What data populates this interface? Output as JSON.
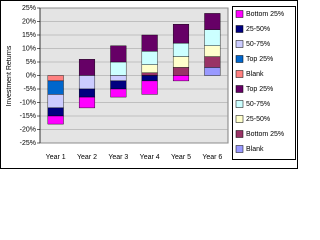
{
  "chart_data": {
    "type": "bar",
    "stacked": true,
    "y_label": "Investment Returns",
    "categories": [
      "Year 1",
      "Year 2",
      "Year 3",
      "Year 4",
      "Year 5",
      "Year 6"
    ],
    "series": [
      {
        "name": "Bottom 25%",
        "color": "#ff00ff",
        "values": [
          -3,
          -4,
          -3,
          -5,
          -2,
          0
        ]
      },
      {
        "name": "25-50%",
        "color": "#000080",
        "values": [
          -3,
          -3,
          -3,
          -2,
          0,
          0
        ]
      },
      {
        "name": "50-75%",
        "color": "#ccccff",
        "values": [
          -5,
          -5,
          -2,
          0,
          0,
          0
        ]
      },
      {
        "name": "Top 25%",
        "color": "#0066cc",
        "values": [
          -5,
          0,
          0,
          0,
          0,
          0
        ]
      },
      {
        "name": "Blank",
        "color": "#ff8080",
        "values": [
          -2,
          0,
          0,
          0,
          0,
          0
        ]
      },
      {
        "name": "Top 25%",
        "color": "#660066",
        "values": [
          0,
          6,
          6,
          6,
          7,
          6
        ]
      },
      {
        "name": "50-75%",
        "color": "#ccffff",
        "values": [
          0,
          0,
          5,
          5,
          5,
          6
        ]
      },
      {
        "name": "25-50%",
        "color": "#ffffcc",
        "values": [
          0,
          0,
          0,
          3,
          4,
          4
        ]
      },
      {
        "name": "Bottom 25%",
        "color": "#993366",
        "values": [
          0,
          0,
          0,
          1,
          3,
          4
        ]
      },
      {
        "name": "Blank",
        "color": "#9999ff",
        "values": [
          0,
          0,
          0,
          0,
          0,
          3
        ]
      }
    ],
    "ylim": [
      -25,
      25
    ],
    "yticks": [
      {
        "value": -25,
        "label": "-25%"
      },
      {
        "value": -20,
        "label": "-20%"
      },
      {
        "value": -15,
        "label": "-15%"
      },
      {
        "value": -10,
        "label": "-10%"
      },
      {
        "value": -5,
        "label": "-5%"
      },
      {
        "value": 0,
        "label": "0%"
      },
      {
        "value": 5,
        "label": "5%"
      },
      {
        "value": 10,
        "label": "10%"
      },
      {
        "value": 15,
        "label": "15%"
      },
      {
        "value": 20,
        "label": "20%"
      },
      {
        "value": 25,
        "label": "25%"
      }
    ],
    "grid": true,
    "legend": "right"
  }
}
